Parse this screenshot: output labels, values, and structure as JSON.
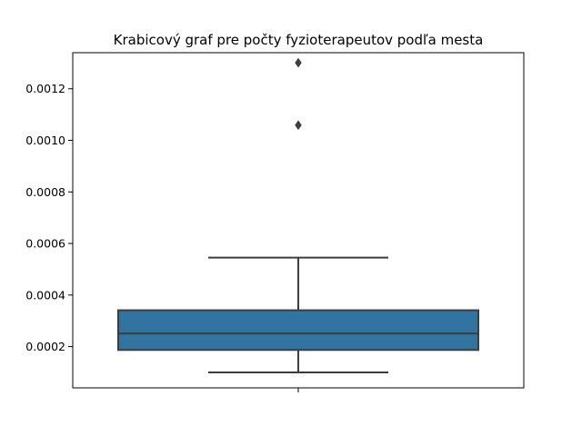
{
  "chart_data": {
    "type": "box",
    "title": "Krabicový graf pre počty fyzioterapeutov podľa mesta",
    "xlabel": "",
    "ylabel": "",
    "ylim": [
      4e-05,
      0.00134
    ],
    "yticks": [
      0.0002,
      0.0004,
      0.0006,
      0.0008,
      0.001,
      0.0012
    ],
    "ytick_labels": [
      "0.0002",
      "0.0004",
      "0.0006",
      "0.0008",
      "0.0010",
      "0.0012"
    ],
    "box": {
      "whisker_low": 0.0001,
      "q1": 0.000187,
      "median": 0.000251,
      "q3": 0.000341,
      "whisker_high": 0.000545
    },
    "outliers": [
      0.001059,
      0.001301
    ],
    "box_color": "#3274a1",
    "line_color": "#3d3d3d",
    "grid": false,
    "legend": "none"
  }
}
